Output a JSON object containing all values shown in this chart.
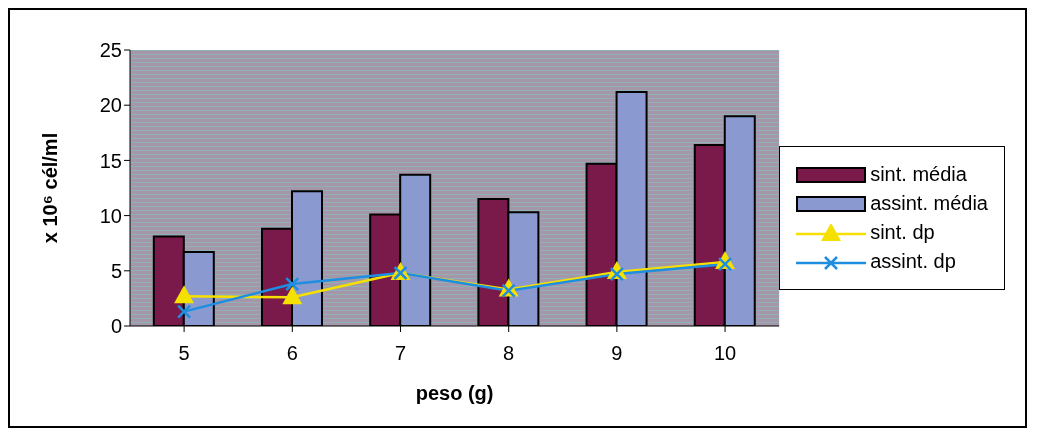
{
  "chart_data": {
    "type": "bar",
    "xlabel": "peso (g)",
    "ylabel": "x 10⁶ cél/ml",
    "categories": [
      "5",
      "6",
      "7",
      "8",
      "9",
      "10"
    ],
    "series": [
      {
        "name": "sint. média",
        "color": "#7a1a4a",
        "values": [
          8.1,
          8.8,
          10.1,
          11.5,
          14.7,
          16.4
        ]
      },
      {
        "name": "assint. média",
        "color": "#8a9ad0",
        "values": [
          6.7,
          12.2,
          13.7,
          10.3,
          21.2,
          19.0
        ]
      },
      {
        "name": "sint. dp",
        "type": "line",
        "color": "#f5e000",
        "marker": "triangle",
        "values": [
          2.7,
          2.6,
          4.8,
          3.3,
          4.9,
          5.8
        ]
      },
      {
        "name": "assint. dp",
        "type": "line",
        "color": "#1e8ee0",
        "marker": "cross",
        "values": [
          1.3,
          3.8,
          4.8,
          3.2,
          4.7,
          5.6
        ]
      }
    ],
    "ylim": [
      0,
      25
    ],
    "yticks": [
      0,
      5,
      10,
      15,
      20,
      25
    ],
    "grid": false,
    "legend": "right"
  }
}
